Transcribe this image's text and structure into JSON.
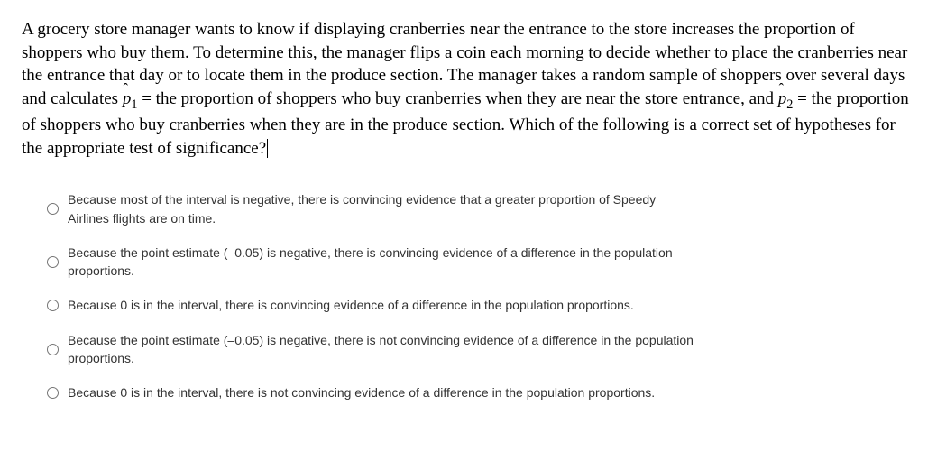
{
  "question": {
    "part1": "A grocery store manager wants to know if displaying cranberries near the entrance to the store increases the proportion of shoppers who buy them. To determine this, the manager flips a coin each morning to decide whether to place the cranberries near the entrance that day or to locate them in the produce section.  The manager takes a random sample of shoppers over several days and calculates ",
    "phat1_eq": " = the proportion of shoppers who buy cranberries when they are near the store entrance, and ",
    "phat2_eq": " = the proportion of shoppers who buy cranberries when they are in the produce section.  Which of the following is a correct set of hypotheses for the appropriate test of significance?"
  },
  "options": [
    "Because most of the interval is negative, there is convincing evidence that a greater proportion of Speedy Airlines flights are on time.",
    "Because the point estimate (–0.05) is negative, there is convincing evidence of a difference in the population proportions.",
    "Because 0 is in the interval, there is convincing evidence of a difference in the population proportions.",
    "Because the point estimate (–0.05) is negative, there is not convincing evidence of a difference in the population proportions.",
    "Because 0 is in the interval, there is not convincing evidence of a difference in the population proportions."
  ]
}
